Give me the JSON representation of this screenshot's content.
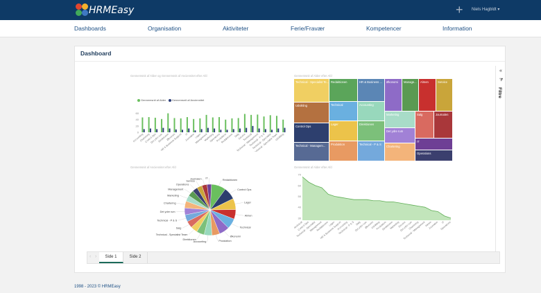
{
  "app": {
    "logo_text": "HRMEasy",
    "user_name": "Niels Hagbldt",
    "user_chevron": "▾",
    "plus_glyph": "+",
    "plus_icon": "plus-icon",
    "colors": {
      "topbar": "#0e3a66",
      "nav_text": "#1c4f84"
    }
  },
  "nav": {
    "items": [
      {
        "label": "Dashboards"
      },
      {
        "label": "Organisation"
      },
      {
        "label": "Aktiviteter"
      },
      {
        "label": "Ferie/Fravær"
      },
      {
        "label": "Kompetencer"
      },
      {
        "label": "Information"
      }
    ]
  },
  "card": {
    "title": "Dashboard"
  },
  "filters": {
    "label": "Filtre",
    "chevron": "«",
    "funnel": "⧩",
    "icon": "filter-funnel-icon"
  },
  "pages": {
    "prev": "‹",
    "next": "›",
    "tabs": [
      {
        "label": "Side 1",
        "active": true
      },
      {
        "label": "Side 2",
        "active": false
      }
    ]
  },
  "footer": {
    "text": "1998 - 2023 © HRMEasy"
  },
  "chart_data": [
    {
      "type": "bar",
      "title": "Gennemsnit af Alder og Gennemsnit af Anciennitet efter Afd",
      "categories": [
        "Accounting",
        "Chartering",
        "Control Ops",
        "Det ydre rum",
        "Direktionen",
        "Økonomi",
        "HR & Business Support",
        "IT",
        "Journalen",
        "Lager",
        "Management",
        "Marketing",
        "Operations",
        "Produktion",
        "Redaktionen",
        "Salg",
        "Service",
        "Technical",
        "Technical - Management",
        "Technical - P & S",
        "Technical - Specialist",
        "Technical - Specialist Team",
        "Udvikling"
      ],
      "series": [
        {
          "name": "Gennemsnit af Alder",
          "color": "#6abf5e",
          "values": [
            47,
            48,
            46,
            42,
            60,
            45,
            44,
            48,
            42,
            44,
            55,
            47,
            48,
            40,
            44,
            45,
            58,
            55,
            56,
            50,
            54,
            52,
            40
          ]
        },
        {
          "name": "Gennemsnit af Anciennitet",
          "color": "#2c3e7a",
          "values": [
            10,
            12,
            10,
            14,
            12,
            9,
            8,
            12,
            6,
            10,
            14,
            12,
            8,
            8,
            10,
            12,
            14,
            20,
            12,
            10,
            8,
            12,
            14
          ]
        }
      ],
      "ylim": [
        0,
        70
      ],
      "yticks": [
        0,
        20,
        40,
        60
      ],
      "legend": "top-left"
    },
    {
      "type": "treemap",
      "title": "Gennemsnit af Alder efter Afd",
      "cells": [
        {
          "label": "Technical - Specialist Te...",
          "color": "#f0cf62"
        },
        {
          "label": "Redaktionen",
          "color": "#5ba55a"
        },
        {
          "label": "HR & Business ...",
          "color": "#5b86b5"
        },
        {
          "label": "Økonomi",
          "color": "#8e6bc7"
        },
        {
          "label": "Manage...",
          "color": "#5a9a52"
        },
        {
          "label": "Almen",
          "color": "#c8302e"
        },
        {
          "label": "Service",
          "color": "#c9a53a"
        },
        {
          "label": "Udvikling",
          "color": "#b47140"
        },
        {
          "label": "Technical",
          "color": "#6ab0e0"
        },
        {
          "label": "Accounting",
          "color": "#98d8bc"
        },
        {
          "label": "Marketing",
          "color": "#a8dcc8"
        },
        {
          "label": "Salg",
          "color": "#d96a60"
        },
        {
          "label": "Journalen",
          "color": "#a9373a"
        },
        {
          "label": "Control Ops",
          "color": "#2d3f6e"
        },
        {
          "label": "Lager",
          "color": "#ecc34a"
        },
        {
          "label": "Direktionen",
          "color": "#7cc07a"
        },
        {
          "label": "Det ydre rum",
          "color": "#a181d6"
        },
        {
          "label": "IT",
          "color": "#6e3f95"
        },
        {
          "label": "Technical - Managem...",
          "color": "#576a94"
        },
        {
          "label": "Produktion",
          "color": "#e89a62"
        },
        {
          "label": "Technical - P & S",
          "color": "#74a9dc"
        },
        {
          "label": "Chartering",
          "color": "#f3b47a"
        },
        {
          "label": "Operations",
          "color": "#3b3f6e"
        }
      ]
    },
    {
      "type": "pie",
      "title": "Gennemsnit af Anciennitet efter Afd",
      "slices": [
        {
          "label": "Redaktionen",
          "value": 8.5,
          "color": "#6abf5e"
        },
        {
          "label": "Control Ops",
          "value": 7,
          "color": "#2d3f6e"
        },
        {
          "label": "Lager",
          "value": 6.5,
          "color": "#ecc34a"
        },
        {
          "label": "Almen",
          "value": 5.5,
          "color": "#c8302e"
        },
        {
          "label": "Technical",
          "value": 6,
          "color": "#6ab0e0"
        },
        {
          "label": "Økonomi",
          "value": 6,
          "color": "#8e6bc7"
        },
        {
          "label": "Produktion",
          "value": 4.5,
          "color": "#e89a62"
        },
        {
          "label": "Accounting",
          "value": 4.5,
          "color": "#98d8bc"
        },
        {
          "label": "Direktionen",
          "value": 4.5,
          "color": "#7cc07a"
        },
        {
          "label": "Technical - Specialist Team",
          "value": 4,
          "color": "#f0cf62"
        },
        {
          "label": "Salg",
          "value": 4,
          "color": "#d96a60"
        },
        {
          "label": "Technical - P & S",
          "value": 4,
          "color": "#74a9dc"
        },
        {
          "label": "Det ydre rum",
          "value": 4,
          "color": "#a181d6"
        },
        {
          "label": "Chartering",
          "value": 4,
          "color": "#f3b47a"
        },
        {
          "label": "Marketing",
          "value": 3.5,
          "color": "#a8dcc8"
        },
        {
          "label": "Management",
          "value": 3.5,
          "color": "#5a9a52"
        },
        {
          "label": "Operations",
          "value": 3,
          "color": "#3b3f6e"
        },
        {
          "label": "Service",
          "value": 3,
          "color": "#c9a53a"
        },
        {
          "label": "Journalen",
          "value": 3,
          "color": "#a9373a"
        },
        {
          "label": "IT",
          "value": 2.5,
          "color": "#6e3f95"
        }
      ]
    },
    {
      "type": "area",
      "title": "Gennemsnit af Alder efter Afd",
      "color": "#8fcf84",
      "categories": [
        "Technical",
        "Control Ops",
        "Technical - Specialist",
        "Management",
        "Redaktionen",
        "Lager",
        "HR & Business Support",
        "Accounting",
        "Technical - P & S",
        "Salg",
        "Det ydre rum",
        "Økonomi",
        "Udvikling",
        "Produktion",
        "Direktionen",
        "Marketing",
        "Service",
        "Det ydre rum",
        "Chartering",
        "Technical - Management",
        "Almen",
        "Journalen",
        "IT",
        "Operations"
      ],
      "values": [
        68,
        63,
        60,
        58,
        52,
        50,
        49,
        48,
        47,
        47,
        47,
        46,
        46,
        45,
        45,
        44,
        43,
        42,
        41,
        40,
        37,
        36,
        32,
        30
      ],
      "ylim": [
        28,
        72
      ],
      "yticks": [
        30,
        40,
        50,
        60,
        70
      ]
    }
  ]
}
